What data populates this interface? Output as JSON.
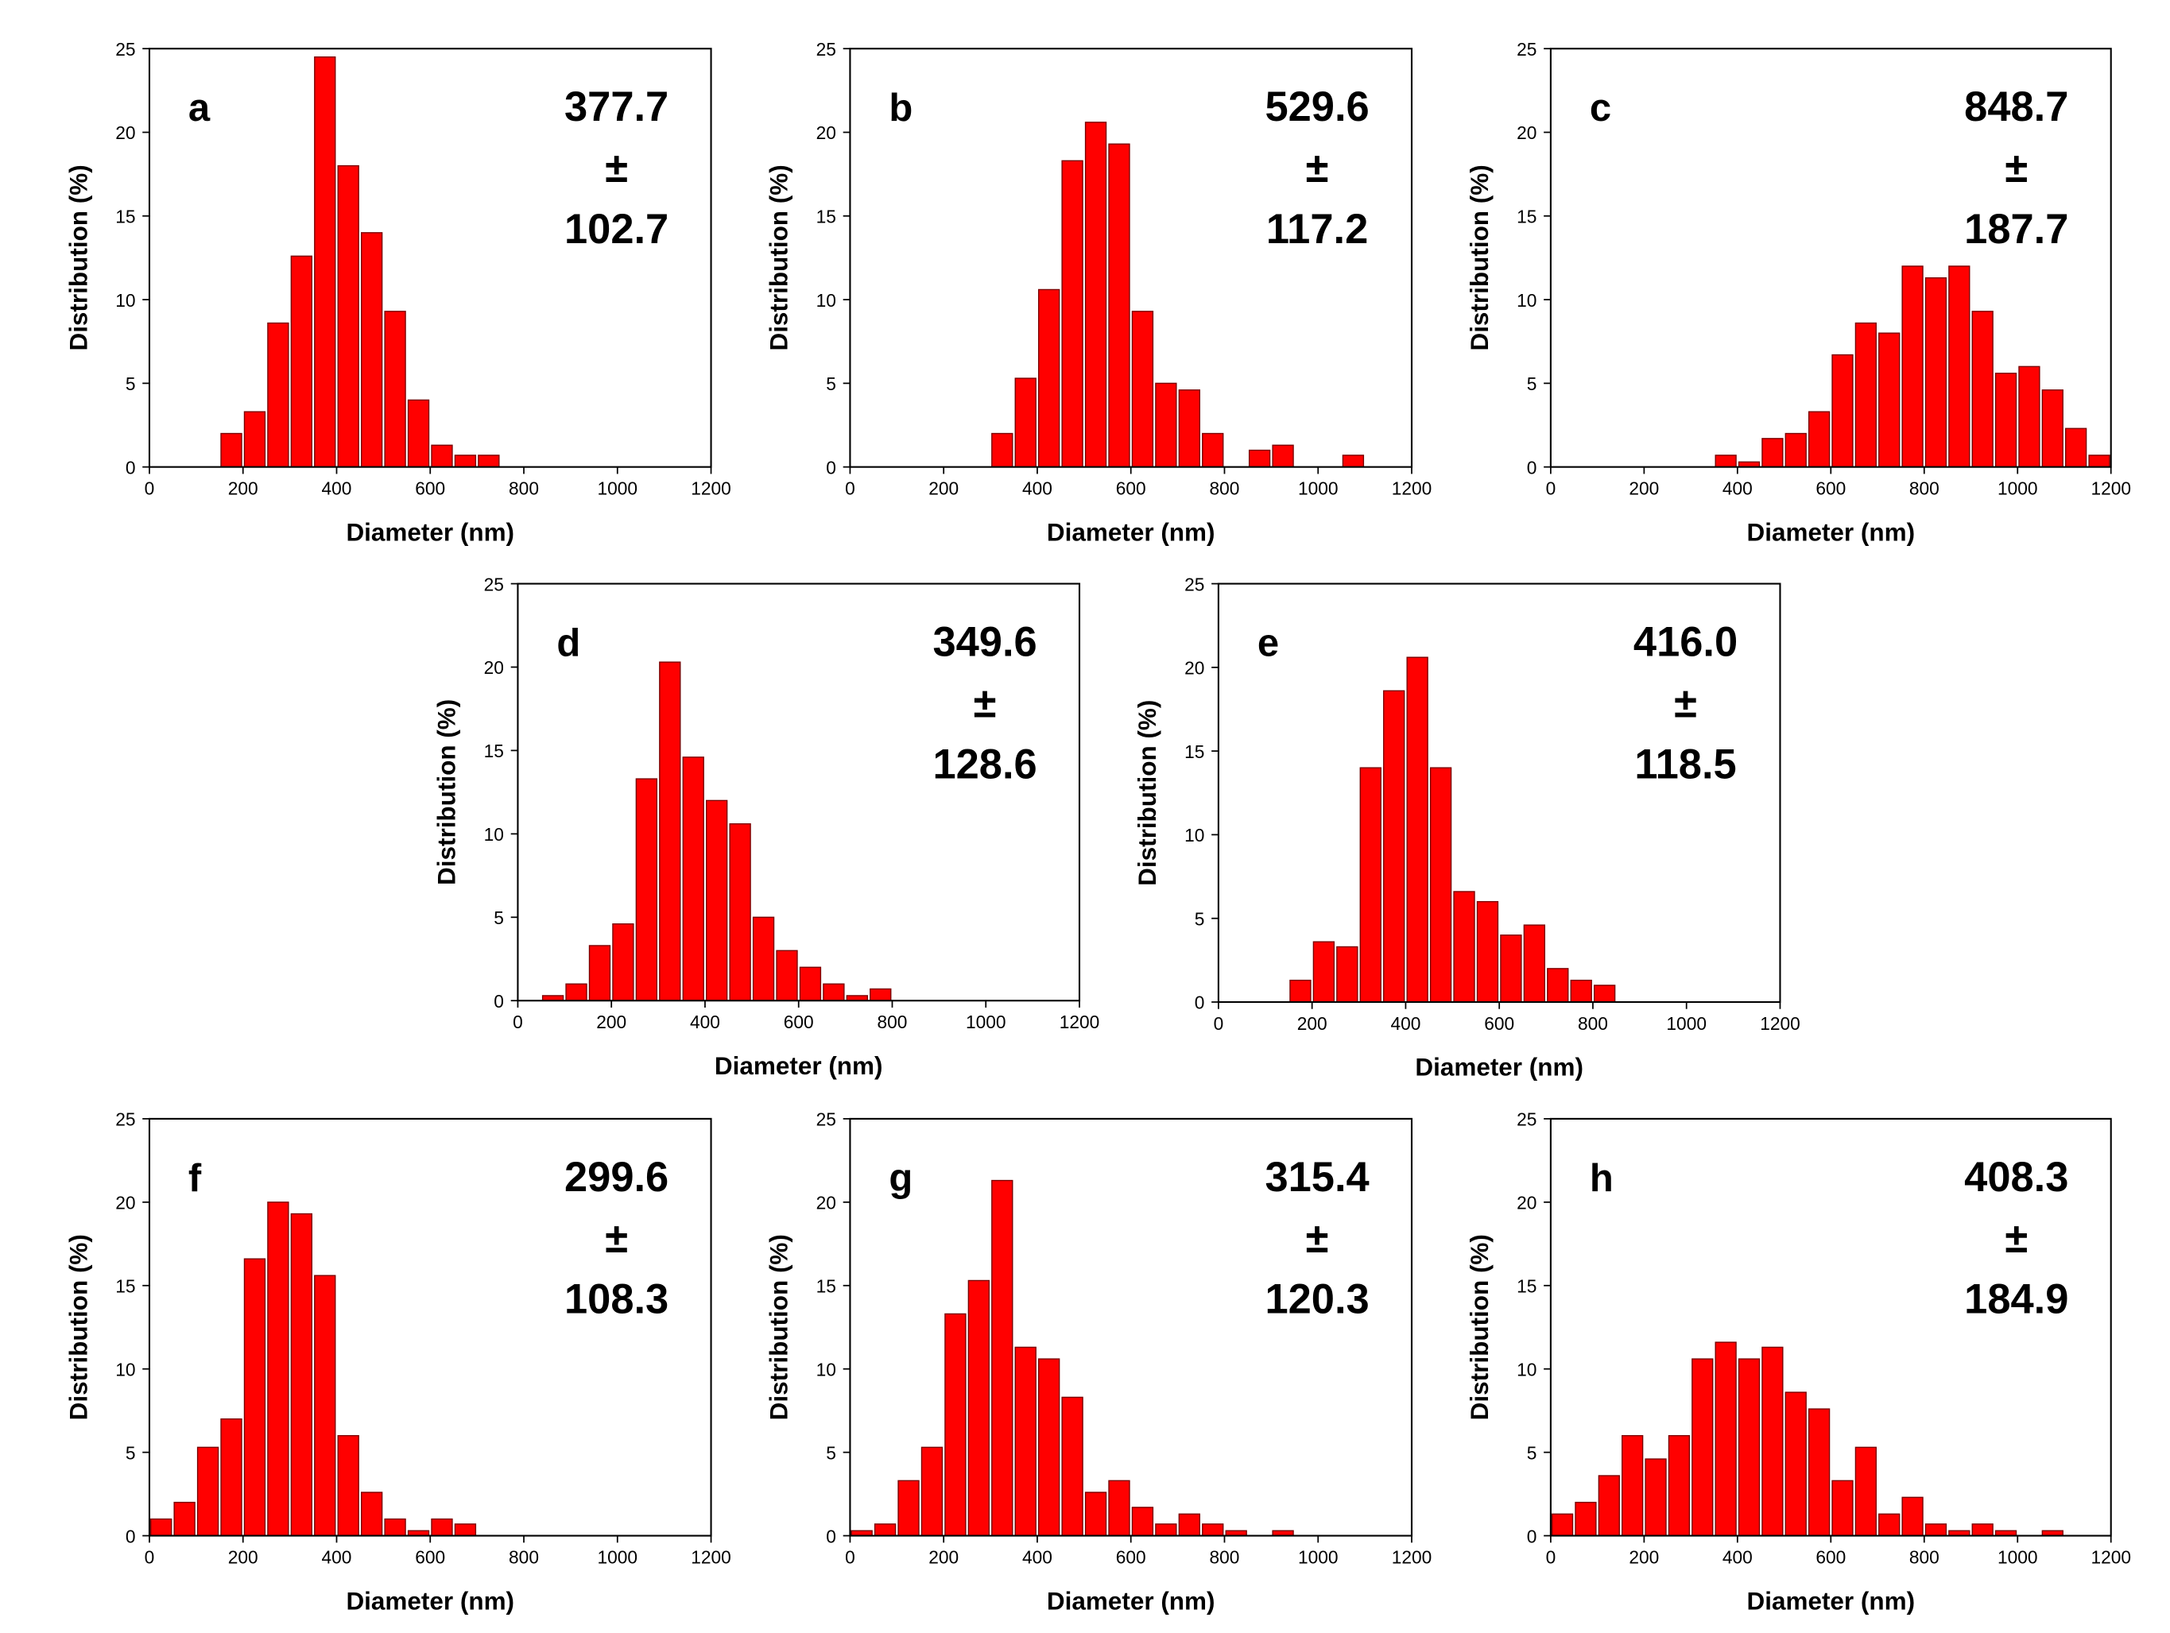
{
  "chart_data": [
    {
      "type": "histogram",
      "panel_label": "a",
      "annotation": [
        "377.7",
        "±",
        "102.7"
      ],
      "xlabel": "Diameter (nm)",
      "ylabel": "Distribution (%)",
      "color": "#ff0000",
      "xlim": [
        0,
        1200
      ],
      "ylim": [
        0,
        25
      ],
      "xticks": [
        0,
        200,
        400,
        600,
        800,
        1000,
        1200
      ],
      "yticks": [
        0,
        5,
        10,
        15,
        20,
        25
      ],
      "bins": [
        150,
        200,
        250,
        300,
        350,
        400,
        450,
        500,
        550,
        600,
        650,
        700,
        750
      ],
      "counts": [
        2,
        3.3,
        8.6,
        12.6,
        24.5,
        18,
        14,
        9.3,
        4,
        1.3,
        0.7,
        0.7
      ]
    },
    {
      "type": "histogram",
      "panel_label": "b",
      "annotation": [
        "529.6",
        "±",
        "117.2"
      ],
      "xlabel": "Diameter (nm)",
      "ylabel": "Distribution (%)",
      "color": "#ff0000",
      "xlim": [
        0,
        1200
      ],
      "ylim": [
        0,
        25
      ],
      "xticks": [
        0,
        200,
        400,
        600,
        800,
        1000,
        1200
      ],
      "yticks": [
        0,
        5,
        10,
        15,
        20,
        25
      ],
      "bins": [
        300,
        350,
        400,
        450,
        500,
        550,
        600,
        650,
        700,
        750,
        800,
        850,
        900,
        950,
        1000,
        1050,
        1100
      ],
      "counts": [
        2,
        5.3,
        10.6,
        18.3,
        20.6,
        19.3,
        9.3,
        5,
        4.6,
        2,
        0,
        1,
        1.3,
        0,
        0,
        0.7
      ]
    },
    {
      "type": "histogram",
      "panel_label": "c",
      "annotation": [
        "848.7",
        "±",
        "187.7"
      ],
      "xlabel": "Diameter (nm)",
      "ylabel": "Distribution (%)",
      "color": "#ff0000",
      "xlim": [
        0,
        1200
      ],
      "ylim": [
        0,
        25
      ],
      "xticks": [
        0,
        200,
        400,
        600,
        800,
        1000,
        1200
      ],
      "yticks": [
        0,
        5,
        10,
        15,
        20,
        25
      ],
      "bins": [
        350,
        400,
        450,
        500,
        550,
        600,
        650,
        700,
        750,
        800,
        850,
        900,
        950,
        1000,
        1050,
        1100,
        1150,
        1200
      ],
      "counts": [
        0.7,
        0.3,
        1.7,
        2,
        3.3,
        6.7,
        8.6,
        8,
        12,
        11.3,
        12,
        9.3,
        5.6,
        6,
        4.6,
        2.3,
        0.7
      ]
    },
    {
      "type": "histogram",
      "panel_label": "d",
      "annotation": [
        "349.6",
        "±",
        "128.6"
      ],
      "xlabel": "Diameter (nm)",
      "ylabel": "Distribution (%)",
      "color": "#ff0000",
      "xlim": [
        0,
        1200
      ],
      "ylim": [
        0,
        25
      ],
      "xticks": [
        0,
        200,
        400,
        600,
        800,
        1000,
        1200
      ],
      "yticks": [
        0,
        5,
        10,
        15,
        20,
        25
      ],
      "bins": [
        50,
        100,
        150,
        200,
        250,
        300,
        350,
        400,
        450,
        500,
        550,
        600,
        650,
        700,
        750,
        800
      ],
      "counts": [
        0.3,
        1,
        3.3,
        4.6,
        13.3,
        20.3,
        14.6,
        12,
        10.6,
        5,
        3,
        2,
        1,
        0.3,
        0.7
      ]
    },
    {
      "type": "histogram",
      "panel_label": "e",
      "annotation": [
        "416.0",
        "±",
        "118.5"
      ],
      "xlabel": "Diameter (nm)",
      "ylabel": "Distribution (%)",
      "color": "#ff0000",
      "xlim": [
        0,
        1200
      ],
      "ylim": [
        0,
        25
      ],
      "xticks": [
        0,
        200,
        400,
        600,
        800,
        1000,
        1200
      ],
      "yticks": [
        0,
        5,
        10,
        15,
        20,
        25
      ],
      "bins": [
        150,
        200,
        250,
        300,
        350,
        400,
        450,
        500,
        550,
        600,
        650,
        700,
        750,
        800,
        850
      ],
      "counts": [
        1.3,
        3.6,
        3.3,
        14,
        18.6,
        20.6,
        14,
        6.6,
        6,
        4,
        4.6,
        2,
        1.3,
        1
      ]
    },
    {
      "type": "histogram",
      "panel_label": "f",
      "annotation": [
        "299.6",
        "±",
        "108.3"
      ],
      "xlabel": "Diameter (nm)",
      "ylabel": "Distribution (%)",
      "color": "#ff0000",
      "xlim": [
        0,
        1200
      ],
      "ylim": [
        0,
        25
      ],
      "xticks": [
        0,
        200,
        400,
        600,
        800,
        1000,
        1200
      ],
      "yticks": [
        0,
        5,
        10,
        15,
        20,
        25
      ],
      "bins": [
        0,
        50,
        100,
        150,
        200,
        250,
        300,
        350,
        400,
        450,
        500,
        550,
        600,
        650,
        700
      ],
      "counts": [
        1,
        2,
        5.3,
        7,
        16.6,
        20,
        19.3,
        15.6,
        6,
        2.6,
        1,
        0.3,
        1,
        0.7
      ]
    },
    {
      "type": "histogram",
      "panel_label": "g",
      "annotation": [
        "315.4",
        "±",
        "120.3"
      ],
      "xlabel": "Diameter (nm)",
      "ylabel": "Distribution (%)",
      "color": "#ff0000",
      "xlim": [
        0,
        1200
      ],
      "ylim": [
        0,
        25
      ],
      "xticks": [
        0,
        200,
        400,
        600,
        800,
        1000,
        1200
      ],
      "yticks": [
        0,
        5,
        10,
        15,
        20,
        25
      ],
      "bins": [
        0,
        50,
        100,
        150,
        200,
        250,
        300,
        350,
        400,
        450,
        500,
        550,
        600,
        650,
        700,
        750,
        800,
        850,
        900,
        950
      ],
      "counts": [
        0.3,
        0.7,
        3.3,
        5.3,
        13.3,
        15.3,
        21.3,
        11.3,
        10.6,
        8.3,
        2.6,
        3.3,
        1.7,
        0.7,
        1.3,
        0.7,
        0.3,
        0,
        0.3
      ]
    },
    {
      "type": "histogram",
      "panel_label": "h",
      "annotation": [
        "408.3",
        "±",
        "184.9"
      ],
      "xlabel": "Diameter (nm)",
      "ylabel": "Distribution (%)",
      "color": "#ff0000",
      "xlim": [
        0,
        1200
      ],
      "ylim": [
        0,
        25
      ],
      "xticks": [
        0,
        200,
        400,
        600,
        800,
        1000,
        1200
      ],
      "yticks": [
        0,
        5,
        10,
        15,
        20,
        25
      ],
      "bins": [
        0,
        50,
        100,
        150,
        200,
        250,
        300,
        350,
        400,
        450,
        500,
        550,
        600,
        650,
        700,
        750,
        800,
        850,
        900,
        950,
        1000,
        1050,
        1100
      ],
      "counts": [
        1.3,
        2,
        3.6,
        6,
        4.6,
        6,
        10.6,
        11.6,
        10.6,
        11.3,
        8.6,
        7.6,
        3.3,
        5.3,
        1.3,
        2.3,
        0.7,
        0.3,
        0.7,
        0.3,
        0,
        0.3
      ]
    }
  ]
}
